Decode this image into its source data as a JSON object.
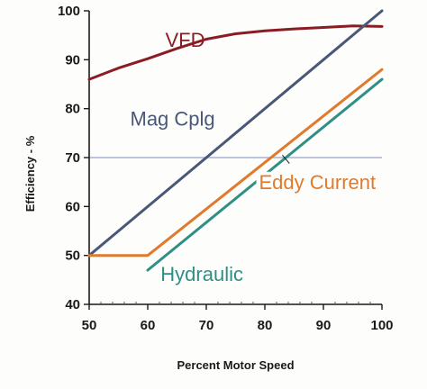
{
  "chart_data": {
    "type": "line",
    "xlabel": "Percent Motor Speed",
    "ylabel": "Efficiency - %",
    "xlim": [
      50,
      100
    ],
    "ylim": [
      40,
      100
    ],
    "x_ticks": [
      "50",
      "60",
      "70",
      "80",
      "90",
      "100"
    ],
    "y_ticks": [
      "40",
      "50",
      "60",
      "70",
      "80",
      "90",
      "100"
    ],
    "grid": false,
    "series": [
      {
        "name": "VFD",
        "color": "#8b1c24",
        "x": [
          50,
          55,
          60,
          65,
          70,
          75,
          80,
          85,
          90,
          95,
          100
        ],
        "y": [
          86,
          88.3,
          90.2,
          92.3,
          94.2,
          95.3,
          95.9,
          96.3,
          96.6,
          96.9,
          96.8
        ]
      },
      {
        "name": "Mag Cplg",
        "color": "#4a5878",
        "x": [
          50,
          100
        ],
        "y": [
          50,
          100
        ]
      },
      {
        "name": "Eddy Current",
        "color": "#e07a2c",
        "x": [
          50,
          60,
          100
        ],
        "y": [
          50,
          50,
          88
        ]
      },
      {
        "name": "Hydraulic",
        "color": "#2f8f86",
        "x": [
          60,
          100
        ],
        "y": [
          47,
          86
        ]
      }
    ],
    "reference_line": {
      "y": 70,
      "color": "#a9b0d6"
    }
  }
}
